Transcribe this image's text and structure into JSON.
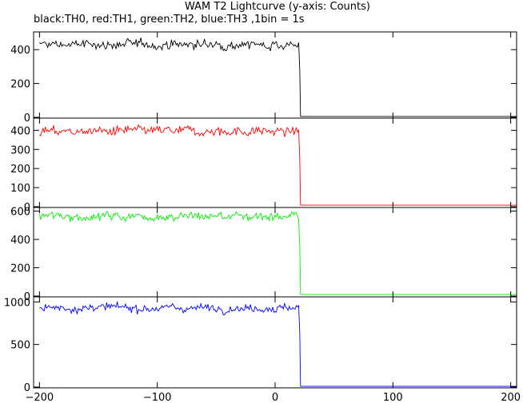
{
  "title": "WAM T2 Lightcurve (y-axis: Counts)",
  "subtitle": "black:TH0, red:TH1, green:TH2, blue:TH3 ,1bin = 1s",
  "chart_data": {
    "type": "line",
    "xlim": [
      -205,
      205
    ],
    "x_ticks": [
      -200,
      -100,
      0,
      100,
      200
    ],
    "x_tick_labels": [
      "−200",
      "−100",
      "0",
      "100",
      "200"
    ],
    "step_x": 21,
    "panels": [
      {
        "channel": "TH0",
        "color": "#000000",
        "ylim": [
          0,
          500
        ],
        "y_ticks": [
          0,
          200,
          400
        ],
        "y_tick_labels": [
          "0",
          "200",
          "400"
        ],
        "level": 430,
        "noise": 15,
        "transition": 270,
        "after": 5
      },
      {
        "channel": "TH1",
        "color": "#ff0000",
        "ylim": [
          0,
          460
        ],
        "y_ticks": [
          0,
          100,
          200,
          300,
          400
        ],
        "y_tick_labels": [
          "0",
          "100",
          "200",
          "300",
          "400"
        ],
        "level": 395,
        "noise": 14,
        "transition": 240,
        "after": 8
      },
      {
        "channel": "TH2",
        "color": "#00ee00",
        "ylim": [
          0,
          620
        ],
        "y_ticks": [
          0,
          200,
          400,
          600
        ],
        "y_tick_labels": [
          "0",
          "200",
          "400",
          "600"
        ],
        "level": 565,
        "noise": 18,
        "transition": 350,
        "after": 12
      },
      {
        "channel": "TH3",
        "color": "#0000ff",
        "ylim": [
          0,
          1050
        ],
        "y_ticks": [
          0,
          500,
          1000
        ],
        "y_tick_labels": [
          "0",
          "500",
          "1000"
        ],
        "level": 930,
        "noise": 25,
        "transition": 610,
        "after": 8
      }
    ]
  }
}
